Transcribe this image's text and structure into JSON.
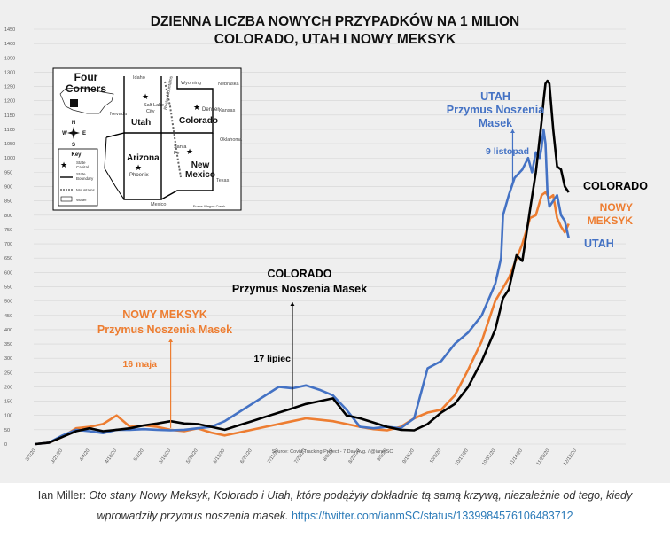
{
  "chart_data": {
    "type": "line",
    "title": [
      "DZIENNA LICZBA NOWYCH PRZYPADKÓW NA 1 MILION",
      "COLORADO, UTAH I NOWY MEKSYK"
    ],
    "source": "Source: Covid Tracking Project - 7 Day Avg. / @ianmSC",
    "ylim": [
      0,
      1450
    ],
    "yticks": [
      0,
      50,
      100,
      150,
      200,
      250,
      300,
      350,
      400,
      450,
      500,
      550,
      600,
      650,
      700,
      750,
      800,
      850,
      900,
      950,
      1000,
      1050,
      1100,
      1150,
      1200,
      1250,
      1300,
      1350,
      1400,
      1450
    ],
    "grid": true,
    "legend": "labels at line ends",
    "xtick_labels": [
      "3/7/20",
      "3/21/20",
      "4/4/20",
      "4/18/20",
      "5/2/20",
      "5/16/20",
      "5/30/20",
      "6/13/20",
      "6/27/20",
      "7/11/20",
      "7/25/20",
      "8/8/20",
      "8/22/20",
      "9/5/20",
      "9/19/20",
      "10/3/20",
      "10/17/20",
      "10/31/20",
      "11/14/20",
      "11/28/20",
      "12/12/20"
    ],
    "x_days": [
      0,
      14,
      28,
      42,
      56,
      70,
      84,
      98,
      112,
      126,
      140,
      154,
      168,
      182,
      196,
      210,
      224,
      238,
      252,
      266,
      280
    ],
    "series": [
      {
        "name": "COLORADO",
        "color": "#000000",
        "x": [
          0,
          7,
          14,
          21,
          28,
          35,
          42,
          49,
          56,
          63,
          70,
          77,
          84,
          91,
          98,
          105,
          112,
          119,
          126,
          133,
          140,
          147,
          154,
          161,
          168,
          175,
          182,
          189,
          196,
          203,
          210,
          217,
          224,
          231,
          238,
          242,
          245,
          249,
          252,
          256,
          259,
          262,
          263,
          264,
          265,
          266,
          268,
          270,
          272,
          274,
          276
        ],
        "y": [
          0,
          5,
          25,
          45,
          55,
          45,
          50,
          55,
          65,
          72,
          80,
          72,
          70,
          60,
          50,
          65,
          80,
          95,
          110,
          125,
          140,
          150,
          160,
          100,
          90,
          75,
          60,
          50,
          48,
          70,
          110,
          140,
          200,
          290,
          400,
          510,
          540,
          660,
          640,
          820,
          950,
          1130,
          1200,
          1260,
          1270,
          1260,
          1100,
          970,
          960,
          900,
          880
        ]
      },
      {
        "name": "UTAH",
        "color": "#4472c4",
        "x": [
          0,
          7,
          14,
          21,
          28,
          35,
          42,
          49,
          56,
          63,
          70,
          77,
          84,
          91,
          98,
          105,
          112,
          119,
          126,
          133,
          140,
          147,
          154,
          161,
          168,
          175,
          182,
          189,
          196,
          203,
          210,
          217,
          224,
          231,
          238,
          241,
          242,
          245,
          248,
          252,
          255,
          257,
          259,
          261,
          262,
          263,
          264,
          265,
          266,
          268,
          270,
          272,
          274,
          276
        ],
        "y": [
          0,
          5,
          30,
          50,
          45,
          38,
          50,
          50,
          52,
          50,
          48,
          50,
          55,
          60,
          80,
          110,
          140,
          170,
          200,
          195,
          205,
          190,
          170,
          120,
          60,
          55,
          60,
          55,
          90,
          265,
          290,
          350,
          390,
          450,
          560,
          650,
          800,
          870,
          930,
          960,
          1000,
          950,
          1020,
          1000,
          1040,
          1100,
          1050,
          880,
          830,
          850,
          870,
          800,
          780,
          720
        ]
      },
      {
        "name": "NOWY MEKSYK",
        "color": "#ed7d31",
        "x": [
          0,
          7,
          14,
          21,
          28,
          35,
          42,
          49,
          56,
          63,
          70,
          77,
          84,
          91,
          98,
          105,
          112,
          119,
          126,
          133,
          140,
          147,
          154,
          161,
          168,
          175,
          182,
          189,
          196,
          203,
          210,
          217,
          224,
          231,
          238,
          245,
          252,
          256,
          259,
          262,
          264,
          266,
          268,
          270,
          272,
          274,
          276
        ],
        "y": [
          0,
          5,
          25,
          55,
          60,
          70,
          100,
          60,
          65,
          60,
          50,
          45,
          55,
          40,
          30,
          40,
          50,
          60,
          70,
          80,
          90,
          85,
          80,
          70,
          60,
          52,
          48,
          60,
          90,
          110,
          120,
          170,
          260,
          360,
          500,
          580,
          700,
          790,
          800,
          870,
          880,
          860,
          870,
          790,
          760,
          740,
          770
        ]
      }
    ],
    "series_labels": {
      "colorado": "COLORADO",
      "nowy_meksyk": [
        "NOWY",
        "MEKSYK"
      ],
      "utah": "UTAH"
    },
    "annotations": [
      {
        "series": "NOWY MEKSYK",
        "x_day": 70,
        "title": [
          "NOWY MEKSYK",
          "Przymus Noszenia Masek"
        ],
        "date_label": "16 maja",
        "color": "#ed7d31"
      },
      {
        "series": "COLORADO",
        "x_day": 133,
        "title": [
          "COLORADO",
          "Przymus Noszenia Masek"
        ],
        "date_label": "17 lipiec",
        "color": "#000000"
      },
      {
        "series": "UTAH",
        "x_day": 247,
        "title": [
          "UTAH",
          "Przymus Noszenia",
          "Masek"
        ],
        "date_label": "9 listopad",
        "color": "#4472c4"
      }
    ],
    "inset_map": {
      "title": [
        "Four",
        "Corners"
      ],
      "states": [
        "Utah",
        "Colorado",
        "Arizona",
        "New Mexico"
      ],
      "cities": [
        "Salt Lake City",
        "Denver",
        "Phoenix",
        "Santa Fe"
      ],
      "neighbors": [
        "Idaho",
        "Wyoming",
        "Nebraska",
        "Nevada",
        "Kansas",
        "Oklahoma",
        "Texas",
        "California",
        "Mexico"
      ],
      "features": [
        "Rocky Mountains"
      ],
      "compass": [
        "N",
        "W",
        "E",
        "S"
      ],
      "key": {
        "title": "Key",
        "items": [
          "State Capital",
          "State Boundary",
          "Mountains",
          "Water"
        ]
      },
      "credit": "Evans Wagon Creek"
    }
  },
  "caption": {
    "author": "Ian Miller: ",
    "text": "Oto stany Nowy Meksyk, Kolorado i Utah, które podążyły dokładnie tą samą krzywą, niezależnie od tego, kiedy wprowadziły przymus noszenia masek.",
    "link": "https://twitter.com/ianmSC/status/1339984576106483712"
  }
}
